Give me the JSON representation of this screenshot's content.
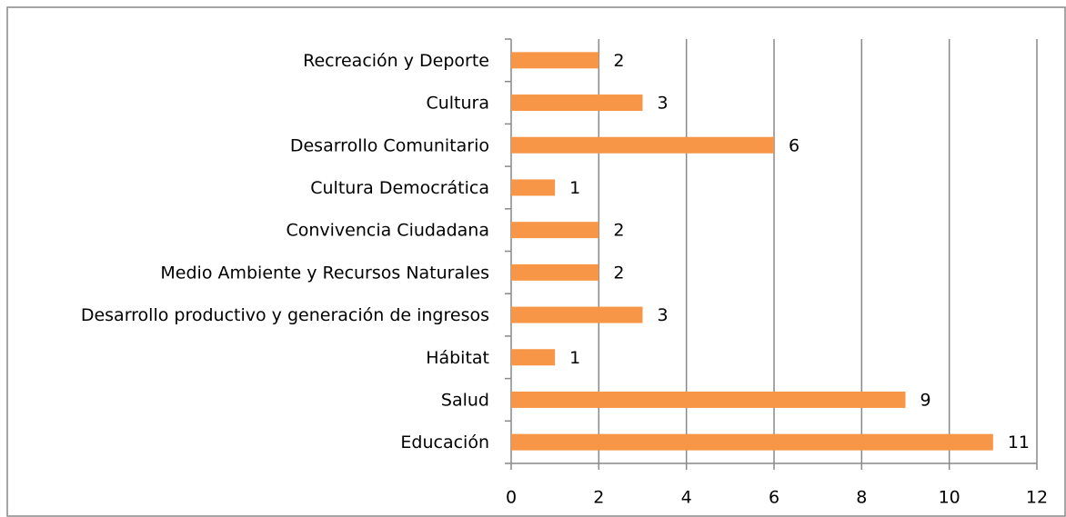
{
  "chart_data": {
    "type": "bar",
    "orientation": "horizontal",
    "categories": [
      "Recreación y Deporte",
      "Cultura",
      "Desarrollo Comunitario",
      "Cultura Democrática",
      "Convivencia Ciudadana",
      "Medio Ambiente y Recursos Naturales",
      "Desarrollo productivo y generación de ingresos",
      "Hábitat",
      "Salud",
      "Educación"
    ],
    "values": [
      2,
      3,
      6,
      1,
      2,
      2,
      3,
      1,
      9,
      11
    ],
    "color": "#f79646",
    "xlim": [
      0,
      12
    ],
    "xticks": [
      0,
      2,
      4,
      6,
      8,
      10,
      12
    ],
    "grid": true
  }
}
